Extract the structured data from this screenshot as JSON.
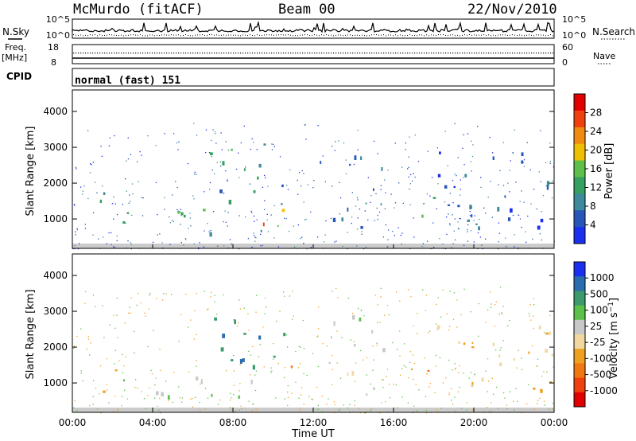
{
  "header": {
    "station": "McMurdo (fitACF)",
    "beam": "Beam 00",
    "date": "22/Nov/2010"
  },
  "top_panel": {
    "left_label": "N.Sky",
    "right_label": "N.Search",
    "tick_high": "10^5",
    "tick_low": "10^0",
    "mid_left_label_1": "Freq.",
    "mid_left_label_2": "[MHz]",
    "mid_right_label": "Nave",
    "freq_ticks": [
      "18",
      "8"
    ],
    "nave_ticks": [
      "60",
      "0"
    ],
    "cpid_label": "CPID",
    "cpid_value": "normal (fast) 151"
  },
  "colors": {
    "power_scale": [
      "#1a2ff0",
      "#2856b8",
      "#3c8a9c",
      "#36a060",
      "#5cc04a",
      "#f0c000",
      "#f08a10",
      "#f04010",
      "#e00000"
    ],
    "velocity_scale": [
      "#e00000",
      "#f04010",
      "#f07810",
      "#f0a020",
      "#f0d8a0",
      "#c8c8c8",
      "#5cc04a",
      "#3c9a6c",
      "#2a6cb0",
      "#1a2ff0"
    ],
    "ground_scatter": "#a0a0a0"
  },
  "chart_data": [
    {
      "type": "heatmap",
      "name": "Power panel",
      "xlabel": "",
      "ylabel": "Slant Range [km]",
      "x_range_hours": [
        0,
        24
      ],
      "ylim": [
        180,
        4600
      ],
      "yticks": [
        1000,
        2000,
        3000,
        4000
      ],
      "colorbar": {
        "label": "Power [dB]",
        "ticks": [
          "28",
          "24",
          "20",
          "16",
          "12",
          "8",
          "4"
        ],
        "range": [
          0,
          30
        ]
      },
      "echo_regions": [
        {
          "t": [
            1.2,
            2.2
          ],
          "r": [
            700,
            1800
          ],
          "value": 8
        },
        {
          "t": [
            2.2,
            4.5
          ],
          "r": [
            700,
            1300
          ],
          "value": 13
        },
        {
          "t": [
            4.5,
            11.0
          ],
          "r": [
            600,
            1300
          ],
          "value": 12
        },
        {
          "t": [
            6.8,
            10.6
          ],
          "r": [
            1300,
            3200
          ],
          "value": 10
        },
        {
          "t": [
            8.0,
            9.6
          ],
          "r": [
            550,
            1000
          ],
          "value": 27
        },
        {
          "t": [
            9.6,
            11.0
          ],
          "r": [
            800,
            1300
          ],
          "value": 20
        },
        {
          "t": [
            12.2,
            15.5
          ],
          "r": [
            700,
            2900
          ],
          "value": 7
        },
        {
          "t": [
            16.8,
            18.0
          ],
          "r": [
            700,
            1800
          ],
          "value": 13
        },
        {
          "t": [
            18.0,
            24.0
          ],
          "r": [
            700,
            3000
          ],
          "value": 6
        }
      ]
    },
    {
      "type": "heatmap",
      "name": "Velocity panel",
      "xlabel": "Time UT",
      "ylabel": "Slant Range [km]",
      "x_range_hours": [
        0,
        24
      ],
      "xticks": [
        "00:00",
        "04:00",
        "08:00",
        "12:00",
        "16:00",
        "20:00",
        "00:00"
      ],
      "ylim": [
        180,
        4600
      ],
      "yticks": [
        1000,
        2000,
        3000,
        4000
      ],
      "colorbar": {
        "label": "Velocity [m s^-1]",
        "ticks": [
          "1000",
          "500",
          "100",
          "25",
          "-25",
          "-100",
          "-500",
          "-1000"
        ],
        "range": [
          -1200,
          1200
        ]
      },
      "echo_regions": [
        {
          "t": [
            1.2,
            2.2
          ],
          "r": [
            700,
            1800
          ],
          "value": -300
        },
        {
          "t": [
            2.2,
            4.5
          ],
          "r": [
            500,
            1300
          ],
          "value": 200
        },
        {
          "t": [
            4.5,
            10.0
          ],
          "r": [
            600,
            1300
          ],
          "value": 300
        },
        {
          "t": [
            6.8,
            10.6
          ],
          "r": [
            1300,
            3200
          ],
          "value": 700
        },
        {
          "t": [
            10.6,
            11.6
          ],
          "r": [
            800,
            1600
          ],
          "value": -500
        },
        {
          "t": [
            12.2,
            15.5
          ],
          "r": [
            700,
            2900
          ],
          "value": 100
        },
        {
          "t": [
            16.8,
            18.0
          ],
          "r": [
            700,
            1700
          ],
          "value": -400
        },
        {
          "t": [
            18.0,
            24.0
          ],
          "r": [
            700,
            2800
          ],
          "value": -200
        }
      ]
    }
  ]
}
